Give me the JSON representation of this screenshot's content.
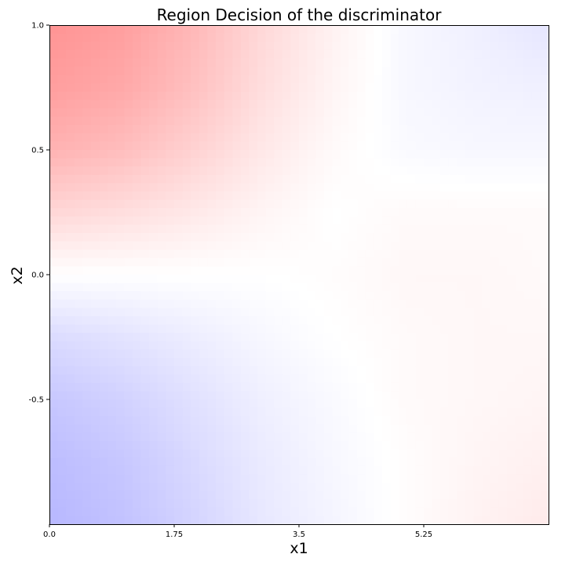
{
  "chart_data": {
    "type": "heatmap",
    "title": "Region Decision of the discriminator",
    "xlabel": "x1",
    "ylabel": "x2",
    "xlim": [
      0.0,
      7.0
    ],
    "ylim": [
      -1.0,
      1.0
    ],
    "x_ticks": [
      {
        "value": 0.0,
        "label": "0.0"
      },
      {
        "value": 1.75,
        "label": "1.75"
      },
      {
        "value": 3.5,
        "label": "3.5"
      },
      {
        "value": 5.25,
        "label": "5.25"
      }
    ],
    "y_ticks": [
      {
        "value": 1.0,
        "label": "1.0"
      },
      {
        "value": 0.5,
        "label": "0.5"
      },
      {
        "value": 0.0,
        "label": "0.0"
      },
      {
        "value": -0.5,
        "label": "-0.5"
      }
    ],
    "colormap": {
      "low_color": "#0000ff",
      "mid_color": "#ffffff",
      "high_color": "#ff0000"
    },
    "grid": {
      "x": [
        0.0,
        1.0,
        2.0,
        3.0,
        4.0,
        5.0,
        6.0,
        7.0
      ],
      "y": [
        1.0,
        0.75,
        0.5,
        0.25,
        0.0,
        -0.25,
        -0.5,
        -0.75,
        -1.0
      ],
      "z": [
        [
          0.42,
          0.38,
          0.28,
          0.15,
          0.05,
          -0.03,
          -0.06,
          -0.1
        ],
        [
          0.38,
          0.34,
          0.25,
          0.13,
          0.04,
          -0.03,
          -0.05,
          -0.06
        ],
        [
          0.3,
          0.26,
          0.18,
          0.09,
          0.02,
          -0.02,
          -0.03,
          -0.03
        ],
        [
          0.16,
          0.13,
          0.09,
          0.04,
          0.0,
          0.02,
          0.02,
          0.02
        ],
        [
          0.0,
          0.0,
          0.0,
          0.0,
          0.01,
          0.03,
          0.03,
          0.02
        ],
        [
          -0.14,
          -0.11,
          -0.07,
          -0.03,
          0.0,
          0.02,
          0.03,
          0.03
        ],
        [
          -0.22,
          -0.18,
          -0.12,
          -0.06,
          -0.02,
          0.02,
          0.03,
          0.04
        ],
        [
          -0.26,
          -0.22,
          -0.15,
          -0.08,
          -0.03,
          0.01,
          0.04,
          0.06
        ],
        [
          -0.28,
          -0.24,
          -0.17,
          -0.09,
          -0.04,
          0.01,
          0.05,
          0.08
        ]
      ]
    }
  }
}
